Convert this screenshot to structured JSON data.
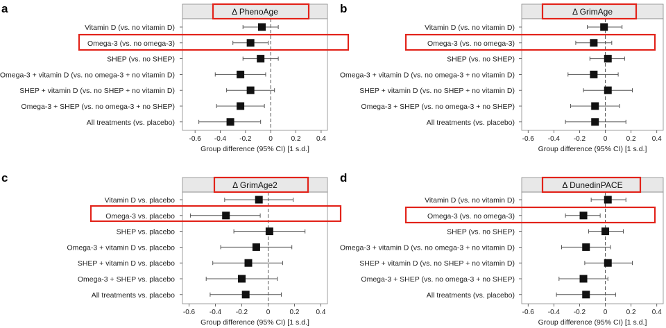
{
  "chart_data": [
    {
      "type": "forest",
      "panel_label": "a",
      "title": "Δ PhenoAge",
      "xlabel": "Group difference (95% CI) [1 s.d.]",
      "xlim": [
        -0.7,
        0.45
      ],
      "xticks": [
        "-0.6",
        "-0.4",
        "-0.2",
        "0",
        "0.2",
        "0.4"
      ],
      "reference_line": 0,
      "highlight_title": true,
      "highlight_row": 1,
      "rows": [
        {
          "label": "Vitamin D (vs. no vitamin D)",
          "est": -0.07,
          "lo": -0.22,
          "hi": 0.06
        },
        {
          "label": "Omega-3 (vs. no omega-3)",
          "est": -0.16,
          "lo": -0.3,
          "hi": -0.02
        },
        {
          "label": "SHEP (vs. no SHEP)",
          "est": -0.08,
          "lo": -0.22,
          "hi": 0.06
        },
        {
          "label": "Omega-3 + vitamin D (vs. no omega-3 + no vitamin D)",
          "est": -0.24,
          "lo": -0.44,
          "hi": -0.04
        },
        {
          "label": "SHEP + vitamin D (vs. no SHEP + no vitamin D)",
          "est": -0.16,
          "lo": -0.35,
          "hi": 0.03
        },
        {
          "label": "Omega-3 + SHEP (vs. no omega-3 + no SHEP)",
          "est": -0.24,
          "lo": -0.43,
          "hi": -0.05
        },
        {
          "label": "All treatments (vs. placebo)",
          "est": -0.32,
          "lo": -0.57,
          "hi": -0.08
        }
      ]
    },
    {
      "type": "forest",
      "panel_label": "b",
      "title": "Δ GrimAge",
      "xlabel": "Group difference (95% CI) [1 s.d.]",
      "xlim": [
        -0.65,
        0.45
      ],
      "xticks": [
        "-0.6",
        "-0.4",
        "-0.2",
        "0",
        "0.2",
        "0.4"
      ],
      "reference_line": 0,
      "highlight_title": true,
      "highlight_row": 1,
      "rows": [
        {
          "label": "Vitamin D (vs. no vitamin D)",
          "est": -0.01,
          "lo": -0.14,
          "hi": 0.13
        },
        {
          "label": "Omega-3 (vs. no omega-3)",
          "est": -0.09,
          "lo": -0.23,
          "hi": 0.05
        },
        {
          "label": "SHEP (vs. no SHEP)",
          "est": 0.02,
          "lo": -0.12,
          "hi": 0.15
        },
        {
          "label": "Omega-3 + vitamin D (vs. no omega-3 + no vitamin D)",
          "est": -0.09,
          "lo": -0.29,
          "hi": 0.1
        },
        {
          "label": "SHEP + vitamin D (vs. no SHEP + no vitamin D)",
          "est": 0.02,
          "lo": -0.17,
          "hi": 0.21
        },
        {
          "label": "Omega-3 + SHEP (vs. no omega-3 + no SHEP)",
          "est": -0.08,
          "lo": -0.27,
          "hi": 0.11
        },
        {
          "label": "All treatments (vs. placebo)",
          "est": -0.08,
          "lo": -0.31,
          "hi": 0.16
        }
      ]
    },
    {
      "type": "forest",
      "panel_label": "c",
      "title": "Δ GrimAge2",
      "xlabel": "Group difference (95% CI) [1 s.d.]",
      "xlim": [
        -0.65,
        0.45
      ],
      "xticks": [
        "-0.6",
        "-0.4",
        "-0.2",
        "0",
        "0.2",
        "0.4"
      ],
      "reference_line": 0,
      "highlight_title": true,
      "highlight_row": 1,
      "rows": [
        {
          "label": "Vitamin D vs. placebo",
          "est": -0.07,
          "lo": -0.33,
          "hi": 0.19
        },
        {
          "label": "Omega-3 vs. placebo",
          "est": -0.32,
          "lo": -0.59,
          "hi": -0.06
        },
        {
          "label": "SHEP vs. placebo",
          "est": 0.01,
          "lo": -0.26,
          "hi": 0.28
        },
        {
          "label": "Omega-3 + vitamin D vs. placebo",
          "est": -0.09,
          "lo": -0.36,
          "hi": 0.18
        },
        {
          "label": "SHEP + vitamin D vs. placebo",
          "est": -0.15,
          "lo": -0.42,
          "hi": 0.11
        },
        {
          "label": "Omega-3 + SHEP vs. placebo",
          "est": -0.2,
          "lo": -0.47,
          "hi": 0.07
        },
        {
          "label": "All treatments vs. placebo",
          "est": -0.17,
          "lo": -0.44,
          "hi": 0.1
        }
      ]
    },
    {
      "type": "forest",
      "panel_label": "d",
      "title": "Δ DunedinPACE",
      "xlabel": "Group difference (95% CI) [1 s.d.]",
      "xlim": [
        -0.65,
        0.45
      ],
      "xticks": [
        "-0.6",
        "-0.4",
        "-0.2",
        "0",
        "0.2",
        "0.4"
      ],
      "reference_line": 0,
      "highlight_title": true,
      "highlight_row": 1,
      "rows": [
        {
          "label": "Vitamin D (vs. no vitamin D)",
          "est": 0.02,
          "lo": -0.11,
          "hi": 0.16
        },
        {
          "label": "Omega-3 (vs. no omega-3)",
          "est": -0.17,
          "lo": -0.31,
          "hi": -0.04
        },
        {
          "label": "SHEP (vs. no SHEP)",
          "est": 0.0,
          "lo": -0.13,
          "hi": 0.14
        },
        {
          "label": "Omega-3 + vitamin D (vs. no omega-3 + no vitamin D)",
          "est": -0.15,
          "lo": -0.34,
          "hi": 0.04
        },
        {
          "label": "SHEP + vitamin D (vs. no SHEP + no vitamin D)",
          "est": 0.02,
          "lo": -0.16,
          "hi": 0.21
        },
        {
          "label": "Omega-3 + SHEP (vs. no omega-3 + no SHEP)",
          "est": -0.17,
          "lo": -0.36,
          "hi": 0.02
        },
        {
          "label": "All treatments (vs. placebo)",
          "est": -0.15,
          "lo": -0.38,
          "hi": 0.08
        }
      ]
    }
  ],
  "colors": {
    "highlight": "#e2231a",
    "marker": "#111111",
    "whisker": "#555555",
    "frame": "#888888",
    "title_band": "#e8e8e8"
  }
}
